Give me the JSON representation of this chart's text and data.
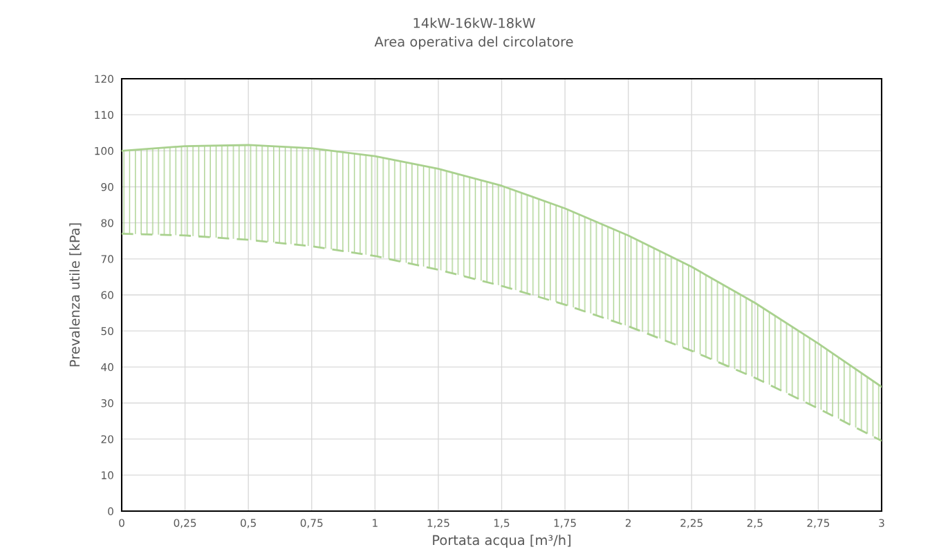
{
  "chart_data": {
    "type": "line",
    "title": "14kW-16kW-18kW",
    "subtitle": "Area operativa del circolatore",
    "xlabel": "Portata acqua [m³/h]",
    "ylabel": "Prevalenza utile [kPa]",
    "x": [
      0,
      0.25,
      0.5,
      0.75,
      1,
      1.25,
      1.5,
      1.75,
      2,
      2.25,
      2.5,
      2.75,
      3
    ],
    "series": [
      {
        "color": "#a9d18e",
        "line_style": "solid",
        "values": [
          100,
          101.3,
          101.6,
          100.7,
          98.5,
          95,
          90.3,
          84,
          76.5,
          67.8,
          57.8,
          46.5,
          34.5
        ],
        "lower": [
          77,
          76.5,
          75.3,
          73.5,
          70.8,
          67,
          62.5,
          57.3,
          51.3,
          44.5,
          37,
          28.5,
          19.5
        ],
        "upper": [
          100,
          101.3,
          101.6,
          100.7,
          98.5,
          95,
          90.3,
          84,
          76.5,
          67.8,
          57.8,
          46.5,
          34.5
        ]
      },
      {
        "color": "#a9d18e",
        "line_style": "dashed",
        "values": [
          77,
          76.5,
          75.3,
          73.5,
          70.8,
          67,
          62.5,
          57.3,
          51.3,
          44.5,
          37,
          28.5,
          19.5
        ]
      }
    ],
    "xlim": [
      0,
      3
    ],
    "ylim": [
      0,
      120
    ],
    "xticks": [
      0,
      {
        "value": 0.25,
        "label": "0,25"
      },
      {
        "value": 0.5,
        "label": "0,5"
      },
      {
        "value": 0.75,
        "label": "0,75"
      },
      1,
      {
        "value": 1.25,
        "label": "1,25"
      },
      {
        "value": 1.5,
        "label": "1,5"
      },
      {
        "value": 1.75,
        "label": "1,75"
      },
      2,
      {
        "value": 2.25,
        "label": "2,25"
      },
      {
        "value": 2.5,
        "label": "2,5"
      },
      {
        "value": 2.75,
        "label": "2,75"
      },
      3
    ],
    "yticks": [
      0,
      10,
      20,
      30,
      40,
      50,
      60,
      70,
      80,
      90,
      100,
      110,
      120
    ],
    "grid": true,
    "marker": "none"
  }
}
